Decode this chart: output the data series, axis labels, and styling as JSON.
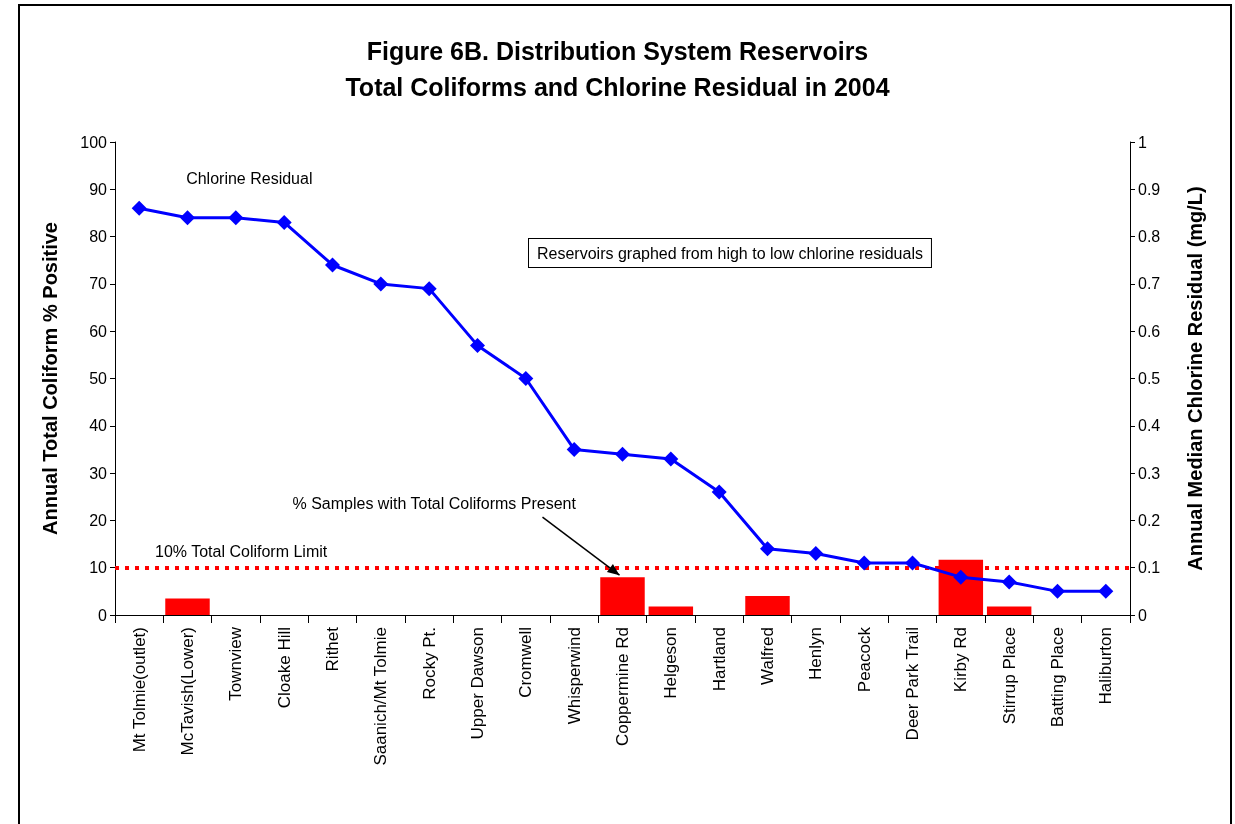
{
  "chart_data": {
    "type": "bar",
    "title": "Figure 6B. Distribution System Reservoirs\nTotal Coliforms and Chlorine Residual in 2004",
    "ylabel": "Annual Total Coliform % Positive",
    "y2label": "Annual Median Chlorine Residual (mg/L)",
    "categories": [
      "Mt Tolmie(outlet)",
      "McTavish(Lower)",
      "Townview",
      "Cloake Hill",
      "Rithet",
      "Saanich/Mt Tolmie",
      "Rocky Pt.",
      "Upper Dawson",
      "Cromwell",
      "Whisperwind",
      "Coppermine Rd",
      "Helgeson",
      "Hartland",
      "Walfred",
      "Henlyn",
      "Peacock",
      "Deer Park Trail",
      "Kirby Rd",
      "Stirrup Place",
      "Batting Place",
      "Haliburton"
    ],
    "series": [
      {
        "name": "% Samples with Total Coliforms Present",
        "color": "#ff0000",
        "values": [
          0,
          3.5,
          0,
          0,
          0,
          0,
          0,
          0,
          0,
          0,
          8,
          1.8,
          0,
          4,
          0,
          0,
          0,
          11.7,
          1.8,
          0,
          0
        ]
      },
      {
        "name": "Chlorine Residual",
        "type": "line",
        "axis": "y2",
        "color": "#0000ff",
        "marker": "diamond",
        "values": [
          0.86,
          0.84,
          0.84,
          0.83,
          0.74,
          0.7,
          0.69,
          0.57,
          0.5,
          0.35,
          0.34,
          0.33,
          0.26,
          0.14,
          0.13,
          0.11,
          0.11,
          0.08,
          0.07,
          0.05,
          0.05
        ]
      }
    ],
    "ylim": [
      0,
      100
    ],
    "yticks": [
      0,
      10,
      20,
      30,
      40,
      50,
      60,
      70,
      80,
      90,
      100
    ],
    "y2lim": [
      0,
      1
    ],
    "y2ticks": [
      0,
      0.1,
      0.2,
      0.3,
      0.4,
      0.5,
      0.6,
      0.7,
      0.8,
      0.9,
      1
    ],
    "ref_lines": [
      {
        "axis": "y",
        "value": 10,
        "label": "10% Total Coliform Limit",
        "color": "#ff0000",
        "line_style": "dotted"
      }
    ],
    "annotations": [
      "Reservoirs graphed from high to low chlorine residuals"
    ],
    "grid": false,
    "legend": false
  }
}
